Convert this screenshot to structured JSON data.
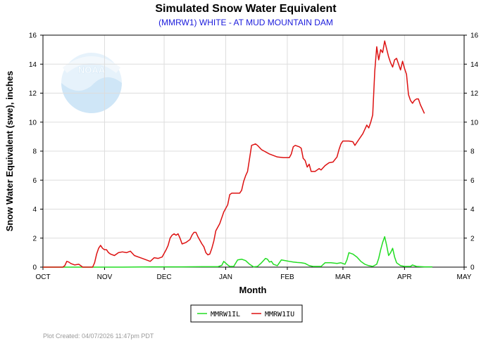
{
  "chart_data": {
    "type": "line",
    "title": "Simulated Snow Water Equivalent",
    "subtitle": "(MMRW1) WHITE - AT MUD MOUNTAIN DAM",
    "xlabel": "Month",
    "ylabel": "Snow Water Equivalent (swe),  inches",
    "x_ticks": [
      "OCT",
      "NOV",
      "DEC",
      "JAN",
      "FEB",
      "MAR",
      "APR",
      "MAY"
    ],
    "x_range_days": [
      0,
      212
    ],
    "y_ticks": [
      "0",
      "2",
      "4",
      "6",
      "8",
      "10",
      "12",
      "14",
      "16"
    ],
    "ylim": [
      0,
      16
    ],
    "grid": true,
    "legend_position": "bottom-center",
    "logo_text": "NOAA",
    "footnote": "Plot Created: 04/07/2026 11:47pm PDT",
    "series": [
      {
        "name": "MMRW1IL",
        "color": "#22dd22",
        "points": [
          [
            0,
            0
          ],
          [
            40,
            0
          ],
          [
            55,
            0.02
          ],
          [
            70,
            0.02
          ],
          [
            80,
            0.03
          ],
          [
            88,
            0.03
          ],
          [
            90,
            0.12
          ],
          [
            91,
            0.4
          ],
          [
            93,
            0.15
          ],
          [
            94,
            0.05
          ],
          [
            96,
            0.05
          ],
          [
            98,
            0.5
          ],
          [
            100,
            0.55
          ],
          [
            102,
            0.45
          ],
          [
            104,
            0.2
          ],
          [
            106,
            0.02
          ],
          [
            108,
            0.05
          ],
          [
            110,
            0.3
          ],
          [
            111,
            0.45
          ],
          [
            112,
            0.6
          ],
          [
            113,
            0.55
          ],
          [
            114,
            0.35
          ],
          [
            115,
            0.4
          ],
          [
            116,
            0.2
          ],
          [
            118,
            0.1
          ],
          [
            120,
            0.5
          ],
          [
            122,
            0.45
          ],
          [
            124,
            0.4
          ],
          [
            126,
            0.35
          ],
          [
            128,
            0.32
          ],
          [
            130,
            0.3
          ],
          [
            132,
            0.25
          ],
          [
            134,
            0.1
          ],
          [
            136,
            0.05
          ],
          [
            140,
            0.05
          ],
          [
            142,
            0.3
          ],
          [
            145,
            0.3
          ],
          [
            148,
            0.25
          ],
          [
            150,
            0.3
          ],
          [
            152,
            0.2
          ],
          [
            153,
            0.5
          ],
          [
            154,
            1.0
          ],
          [
            156,
            0.9
          ],
          [
            158,
            0.7
          ],
          [
            160,
            0.4
          ],
          [
            162,
            0.2
          ],
          [
            164,
            0.1
          ],
          [
            166,
            0.05
          ],
          [
            168,
            0.2
          ],
          [
            169,
            0.6
          ],
          [
            170,
            1.2
          ],
          [
            171,
            1.7
          ],
          [
            172,
            2.1
          ],
          [
            173,
            1.5
          ],
          [
            174,
            0.8
          ],
          [
            175,
            1.0
          ],
          [
            176,
            1.3
          ],
          [
            177,
            0.7
          ],
          [
            178,
            0.3
          ],
          [
            180,
            0.1
          ],
          [
            182,
            0.05
          ],
          [
            185,
            0.05
          ],
          [
            186,
            0.15
          ],
          [
            188,
            0.05
          ],
          [
            192,
            0.02
          ],
          [
            196,
            0.02
          ]
        ]
      },
      {
        "name": "MMRW1IU",
        "color": "#dd1111",
        "points": [
          [
            0,
            0
          ],
          [
            10,
            0
          ],
          [
            11,
            0.1
          ],
          [
            12,
            0.4
          ],
          [
            13,
            0.35
          ],
          [
            14,
            0.25
          ],
          [
            16,
            0.15
          ],
          [
            18,
            0.2
          ],
          [
            19,
            0.1
          ],
          [
            20,
            0
          ],
          [
            25,
            0
          ],
          [
            26,
            0.3
          ],
          [
            27,
            0.9
          ],
          [
            28,
            1.3
          ],
          [
            29,
            1.5
          ],
          [
            30,
            1.3
          ],
          [
            31,
            1.2
          ],
          [
            32,
            1.2
          ],
          [
            33,
            1.0
          ],
          [
            34,
            0.9
          ],
          [
            36,
            0.8
          ],
          [
            38,
            1.0
          ],
          [
            40,
            1.05
          ],
          [
            42,
            1.0
          ],
          [
            44,
            1.1
          ],
          [
            46,
            0.8
          ],
          [
            48,
            0.7
          ],
          [
            50,
            0.6
          ],
          [
            52,
            0.5
          ],
          [
            54,
            0.4
          ],
          [
            56,
            0.65
          ],
          [
            58,
            0.6
          ],
          [
            60,
            0.7
          ],
          [
            62,
            1.2
          ],
          [
            63,
            1.5
          ],
          [
            64,
            2.0
          ],
          [
            65,
            2.2
          ],
          [
            66,
            2.3
          ],
          [
            67,
            2.2
          ],
          [
            68,
            2.3
          ],
          [
            69,
            2.0
          ],
          [
            70,
            1.6
          ],
          [
            72,
            1.7
          ],
          [
            74,
            1.9
          ],
          [
            75,
            2.2
          ],
          [
            76,
            2.4
          ],
          [
            77,
            2.4
          ],
          [
            78,
            2.1
          ],
          [
            80,
            1.6
          ],
          [
            81,
            1.4
          ],
          [
            82,
            1.0
          ],
          [
            83,
            0.85
          ],
          [
            84,
            0.9
          ],
          [
            85,
            1.3
          ],
          [
            86,
            1.8
          ],
          [
            87,
            2.5
          ],
          [
            89,
            3.0
          ],
          [
            91,
            3.8
          ],
          [
            93,
            4.3
          ],
          [
            94,
            5.0
          ],
          [
            95,
            5.1
          ],
          [
            97,
            5.1
          ],
          [
            98,
            5.1
          ],
          [
            99,
            5.1
          ],
          [
            100,
            5.3
          ],
          [
            101,
            5.9
          ],
          [
            102,
            6.3
          ],
          [
            103,
            6.6
          ],
          [
            104,
            7.5
          ],
          [
            105,
            8.4
          ],
          [
            107,
            8.5
          ],
          [
            108,
            8.4
          ],
          [
            110,
            8.1
          ],
          [
            114,
            7.8
          ],
          [
            118,
            7.6
          ],
          [
            121,
            7.55
          ],
          [
            124,
            7.55
          ],
          [
            125,
            7.8
          ],
          [
            126,
            8.3
          ],
          [
            127,
            8.4
          ],
          [
            129,
            8.3
          ],
          [
            130,
            8.2
          ],
          [
            131,
            7.5
          ],
          [
            132,
            7.35
          ],
          [
            133,
            6.9
          ],
          [
            134,
            7.1
          ],
          [
            135,
            6.6
          ],
          [
            137,
            6.6
          ],
          [
            139,
            6.8
          ],
          [
            140,
            6.7
          ],
          [
            142,
            7.0
          ],
          [
            144,
            7.2
          ],
          [
            146,
            7.25
          ],
          [
            148,
            7.6
          ],
          [
            149,
            8.1
          ],
          [
            150,
            8.5
          ],
          [
            151,
            8.7
          ],
          [
            154,
            8.7
          ],
          [
            156,
            8.65
          ],
          [
            157,
            8.4
          ],
          [
            159,
            8.8
          ],
          [
            161,
            9.2
          ],
          [
            162,
            9.5
          ],
          [
            163,
            9.8
          ],
          [
            164,
            9.6
          ],
          [
            165,
            10.0
          ],
          [
            166,
            10.5
          ],
          [
            167,
            13.5
          ],
          [
            168,
            15.2
          ],
          [
            169,
            14.3
          ],
          [
            170,
            15.0
          ],
          [
            171,
            14.8
          ],
          [
            172,
            15.6
          ],
          [
            174,
            14.5
          ],
          [
            175,
            14.1
          ],
          [
            176,
            13.8
          ],
          [
            177,
            14.3
          ],
          [
            178,
            14.4
          ],
          [
            179,
            14.0
          ],
          [
            180,
            13.6
          ],
          [
            181,
            14.2
          ],
          [
            182,
            13.7
          ],
          [
            183,
            13.3
          ],
          [
            184,
            11.9
          ],
          [
            185,
            11.5
          ],
          [
            186,
            11.3
          ],
          [
            187,
            11.5
          ],
          [
            188,
            11.6
          ],
          [
            189,
            11.6
          ],
          [
            190,
            11.2
          ],
          [
            191,
            10.9
          ],
          [
            192,
            10.6
          ]
        ]
      }
    ]
  }
}
